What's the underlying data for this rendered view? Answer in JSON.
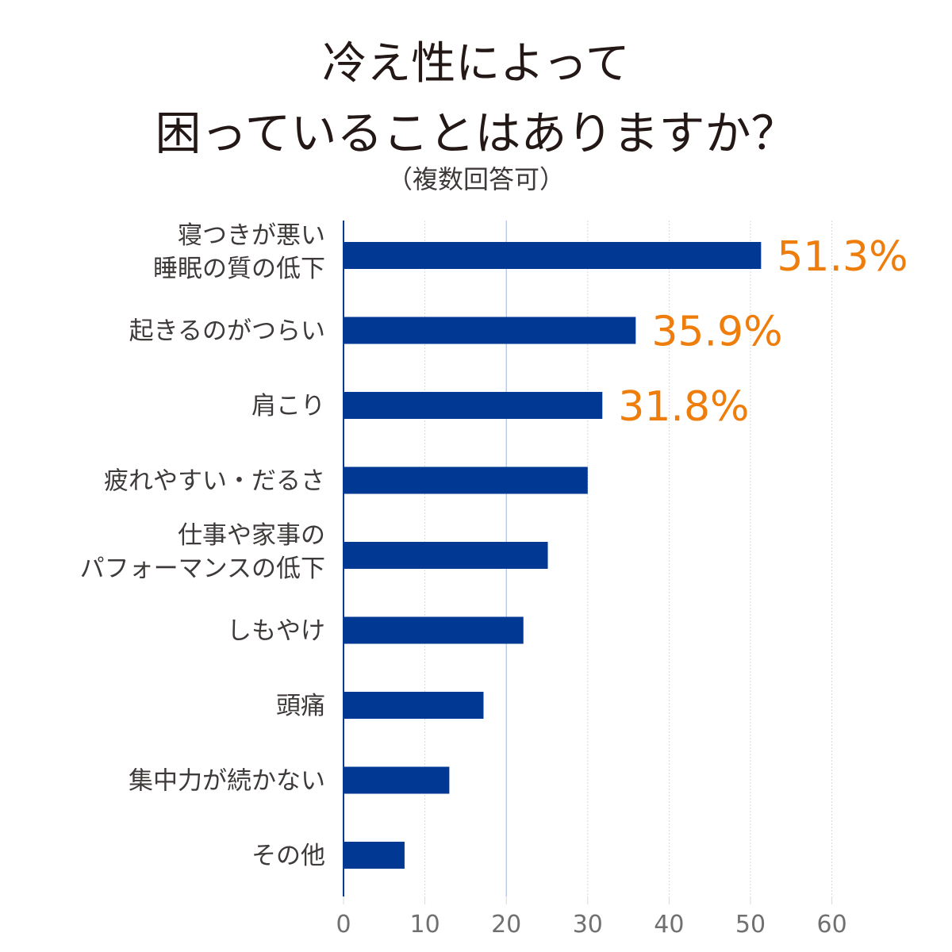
{
  "chart_data": {
    "type": "bar",
    "orientation": "horizontal",
    "title_lines": [
      "冷え性によって",
      "困っていることはありますか？"
    ],
    "subtitle": "（複数回答可）",
    "categories": [
      [
        "寝つきが悪い",
        "睡眠の質の低下"
      ],
      [
        "起きるのがつらい"
      ],
      [
        "肩こり"
      ],
      [
        "疲れやすい・だるさ"
      ],
      [
        "仕事や家事の",
        "パフォーマンスの低下"
      ],
      [
        "しもやけ"
      ],
      [
        "頭痛"
      ],
      [
        "集中力が続かない"
      ],
      [
        "その他"
      ]
    ],
    "values": [
      51.3,
      35.9,
      31.8,
      30.0,
      25.1,
      22.1,
      17.2,
      13.0,
      7.5
    ],
    "data_labels": [
      "51.3%",
      "35.9%",
      "31.8%",
      "",
      "",
      "",
      "",
      "",
      ""
    ],
    "xlim": [
      0,
      60
    ],
    "xticks": [
      "0",
      "10",
      "20",
      "30",
      "40",
      "50",
      "60"
    ],
    "grid": true,
    "xlabel": "",
    "ylabel": ""
  },
  "colors": {
    "bar": "#003893",
    "highlight": "#ee7d0b",
    "axis": "#003893",
    "grid": "#d8d8d8"
  }
}
